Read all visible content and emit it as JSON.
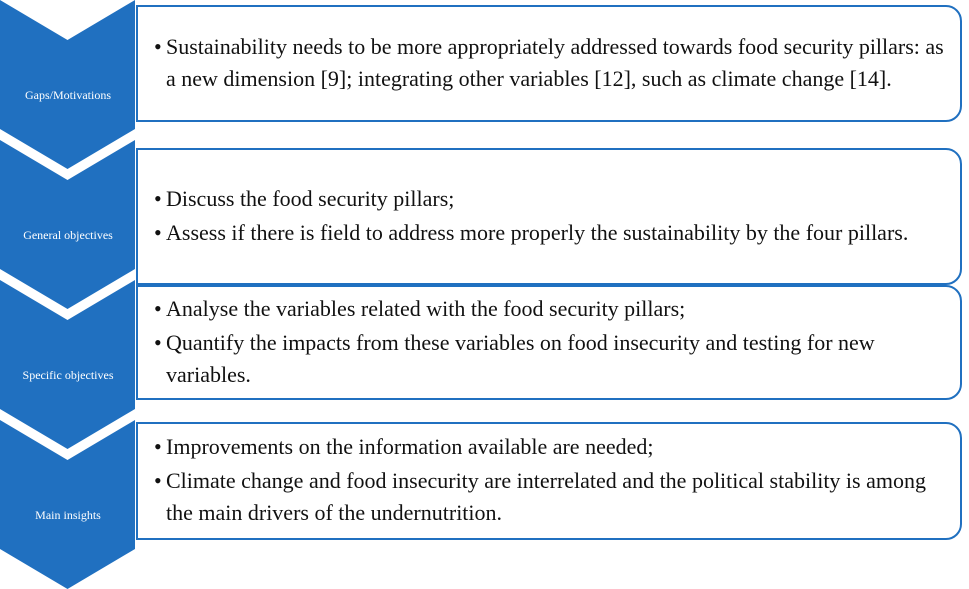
{
  "stages": [
    {
      "label": "Gaps/Motivations",
      "bullets": [
        "Sustainability needs to be more appropriately addressed towards food security pillars: as a new dimension [9]; integrating other variables [12], such as climate change [14]."
      ]
    },
    {
      "label": "General objectives",
      "bullets": [
        "Discuss the food security pillars;",
        "Assess if there is field to address more properly the sustainability by the four pillars."
      ]
    },
    {
      "label": "Specific objectives",
      "bullets": [
        "Analyse the variables related with the food security pillars;",
        "Quantify the impacts from these variables on food insecurity and testing for new variables."
      ]
    },
    {
      "label": "Main insights",
      "bullets": [
        "Improvements on the information available are needed;",
        "Climate change and food insecurity are interrelated and the political stability is among the main drivers of the undernutrition."
      ]
    }
  ]
}
